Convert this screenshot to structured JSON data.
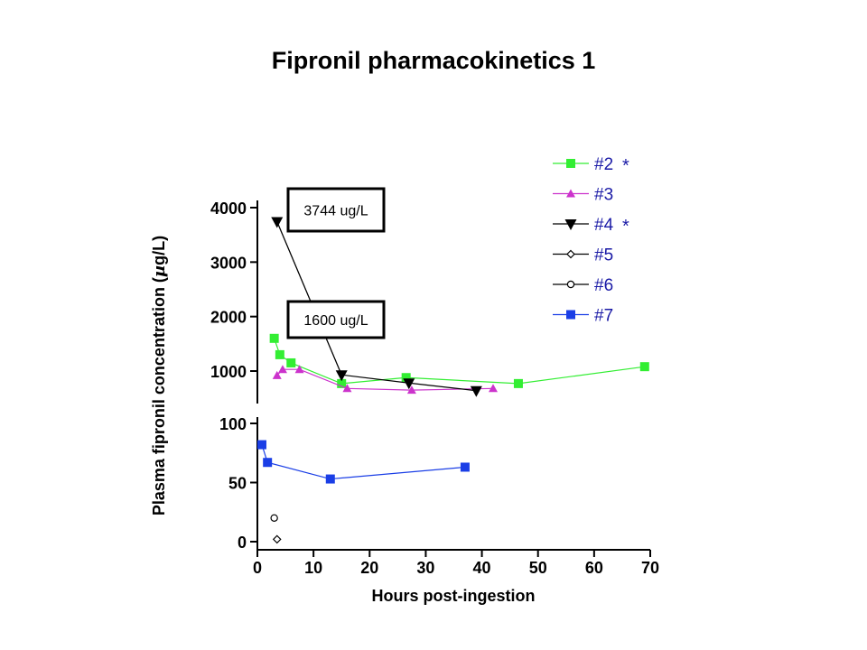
{
  "slide": {
    "title": "Fipronil pharmacokinetics 1"
  },
  "chart_data": {
    "type": "line",
    "title": "Fipronil pharmacokinetics 1",
    "xlabel": "Hours post-ingestion",
    "ylabel": "Plasma fipronil concentration (µg/L)",
    "ylabel_parts": {
      "before": "Plasma fipronil concentration (",
      "symbol": "µ",
      "after": "g/L)"
    },
    "xlim": [
      0,
      70
    ],
    "x_ticks": [
      0,
      10,
      20,
      30,
      40,
      50,
      60,
      70
    ],
    "broken_y_axis": true,
    "upper_panel": {
      "ylim": [
        1000,
        4000
      ],
      "y_ticks": [
        1000,
        2000,
        3000,
        4000
      ]
    },
    "lower_panel": {
      "ylim": [
        0,
        100
      ],
      "y_ticks": [
        0,
        50,
        100
      ]
    },
    "legend_position": "top-right",
    "annotations": [
      {
        "text": "3744 ug/L",
        "points_to": {
          "x": 3.5,
          "y": 3744
        }
      },
      {
        "text": "1600 ug/L",
        "points_to": {
          "x": 3,
          "y": 1600
        }
      }
    ],
    "series": [
      {
        "name": "#2",
        "asterisk": "*",
        "marker": "square",
        "color": "#33ee33",
        "panel": "upper",
        "x": [
          3,
          4,
          6,
          15,
          26.5,
          46.5,
          69
        ],
        "y": [
          1600,
          1300,
          1150,
          770,
          880,
          770,
          1080
        ]
      },
      {
        "name": "#3",
        "marker": "triangle-up",
        "color": "#cc33cc",
        "panel": "upper",
        "x": [
          3.5,
          4.5,
          7.5,
          16,
          27.5,
          42
        ],
        "y": [
          920,
          1030,
          1030,
          680,
          650,
          680
        ]
      },
      {
        "name": "#4",
        "asterisk": "*",
        "marker": "triangle-down",
        "color": "#000000",
        "panel": "upper",
        "x": [
          3.5,
          15,
          27,
          39
        ],
        "y": [
          3744,
          930,
          780,
          640
        ]
      },
      {
        "name": "#5",
        "marker": "diamond-open",
        "color": "#000000",
        "panel": "lower",
        "x": [
          3.5
        ],
        "y": [
          2
        ]
      },
      {
        "name": "#6",
        "marker": "circle-open",
        "color": "#000000",
        "panel": "lower",
        "x": [
          3
        ],
        "y": [
          20
        ]
      },
      {
        "name": "#7",
        "marker": "square",
        "color": "#1a3ee6",
        "panel": "lower",
        "x": [
          0.8,
          1.8,
          13,
          37
        ],
        "y": [
          82,
          67,
          53,
          63
        ]
      }
    ]
  }
}
